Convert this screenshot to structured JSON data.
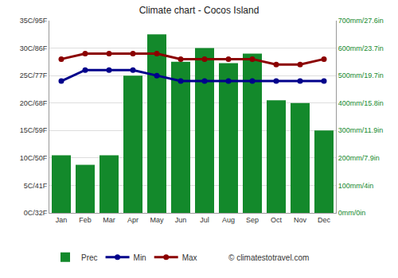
{
  "chart_data": {
    "type": "bar",
    "title": "Climate chart - Cocos Island",
    "categories": [
      "Jan",
      "Feb",
      "Mar",
      "Apr",
      "May",
      "Jun",
      "Jul",
      "Aug",
      "Sep",
      "Oct",
      "Nov",
      "Dec"
    ],
    "series": [
      {
        "name": "Prec",
        "type": "bar",
        "axis": "y2",
        "color": "#13892b",
        "values": [
          210,
          175,
          210,
          500,
          650,
          550,
          600,
          545,
          580,
          410,
          400,
          300
        ]
      },
      {
        "name": "Min",
        "type": "line",
        "color": "#00008b",
        "marker": "circle",
        "line_style": "solid",
        "values": [
          24,
          26,
          26,
          26,
          25,
          24,
          24,
          24,
          24,
          24,
          24,
          24
        ]
      },
      {
        "name": "Max",
        "type": "line",
        "color": "#8b0000",
        "marker": "circle",
        "line_style": "solid",
        "values": [
          28,
          29,
          29,
          29,
          29,
          28,
          28,
          28,
          28,
          27,
          27,
          28
        ]
      }
    ],
    "ylim": [
      0,
      35
    ],
    "yticks": [
      {
        "value": 0,
        "label": "0C/32F"
      },
      {
        "value": 5,
        "label": "5C/41F"
      },
      {
        "value": 10,
        "label": "10C/50F"
      },
      {
        "value": 15,
        "label": "15C/59F"
      },
      {
        "value": 20,
        "label": "20C/68F"
      },
      {
        "value": 25,
        "label": "25C/77F"
      },
      {
        "value": 30,
        "label": "30C/86F"
      },
      {
        "value": 35,
        "label": "35C/95F"
      }
    ],
    "y2lim": [
      0,
      700
    ],
    "y2ticks": [
      {
        "value": 0,
        "label": "0mm/0in"
      },
      {
        "value": 100,
        "label": "100mm/4in"
      },
      {
        "value": 200,
        "label": "200mm/7.9in"
      },
      {
        "value": 300,
        "label": "300mm/11.9in"
      },
      {
        "value": 400,
        "label": "400mm/15.8in"
      },
      {
        "value": 500,
        "label": "500mm/19.7in"
      },
      {
        "value": 600,
        "label": "600mm/23.7in"
      },
      {
        "value": 700,
        "label": "700mm/27.6in"
      }
    ],
    "grid": true,
    "legend": "bottom",
    "annotations": [
      "© climatestotravel.com"
    ]
  }
}
